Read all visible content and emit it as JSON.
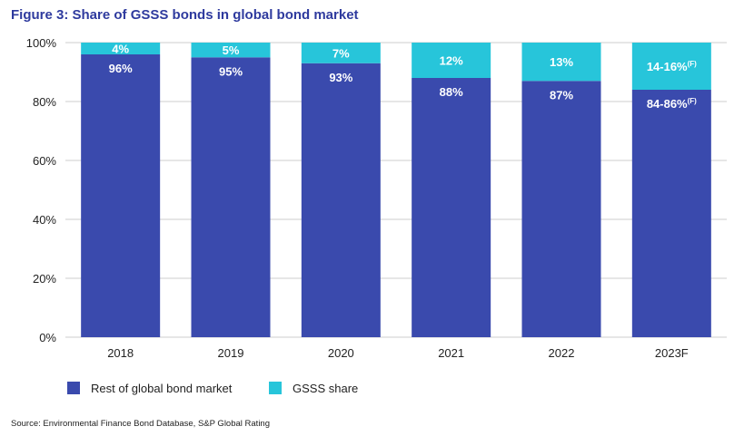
{
  "figure_title": "Figure 3: Share of GSSS bonds in global bond market",
  "source": "Source: Environmental Finance Bond Database, S&P Global Rating",
  "colors": {
    "rest": "#3a4aad",
    "gsss": "#27c5da",
    "title": "#2e3a9e",
    "grid": "#cccccc"
  },
  "chart_data": {
    "type": "bar",
    "stacked": true,
    "categories": [
      "2018",
      "2019",
      "2020",
      "2021",
      "2022",
      "2023F"
    ],
    "series": [
      {
        "name": "Rest of global bond market",
        "values": [
          96,
          95,
          93,
          88,
          87,
          84
        ],
        "labels": [
          "96%",
          "95%",
          "93%",
          "88%",
          "87%",
          "84-86%"
        ],
        "label_superscript": [
          "",
          "",
          "",
          "",
          "",
          "(F)"
        ]
      },
      {
        "name": "GSSS share",
        "values": [
          4,
          5,
          7,
          12,
          13,
          16
        ],
        "labels": [
          "4%",
          "5%",
          "7%",
          "12%",
          "13%",
          "14-16%"
        ],
        "label_superscript": [
          "",
          "",
          "",
          "",
          "",
          "(F)"
        ]
      }
    ],
    "y_ticks": [
      "0%",
      "20%",
      "40%",
      "60%",
      "80%",
      "100%"
    ],
    "ylim": [
      0,
      100
    ],
    "legend_position": "bottom-left",
    "grid": true
  }
}
